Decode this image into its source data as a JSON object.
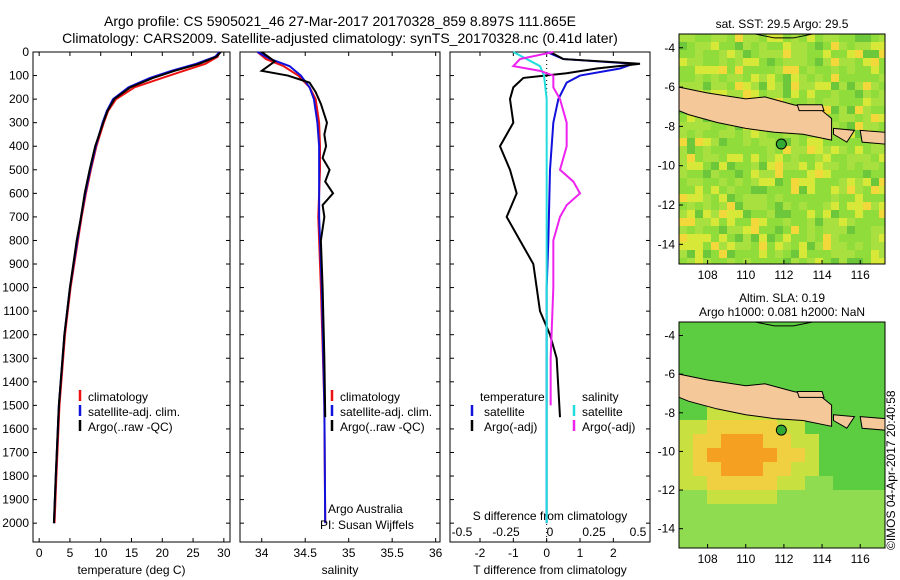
{
  "title_line1": "Argo profile: CS 5905021_46 27-Mar-2017 20170328_859 8.897S 111.865E",
  "title_line2": "Climatology: CARS2009. Satellite-adjusted climatology: synTS_20170328.nc (0.41d later)",
  "colors": {
    "climatology": "#ee1111",
    "satellite": "#1111dd",
    "argo": "#000000",
    "salinity_sat": "#22dddd",
    "salinity_argo": "#ee22ee",
    "land": "#f5c89a"
  },
  "depth_axis": {
    "ticks": [
      0,
      100,
      200,
      300,
      400,
      500,
      600,
      700,
      800,
      900,
      1000,
      1100,
      1200,
      1300,
      1400,
      1500,
      1600,
      1700,
      1800,
      1900,
      2000
    ],
    "range": [
      0,
      2080
    ]
  },
  "chart_data": [
    {
      "type": "line",
      "name": "temperature",
      "xlabel": "temperature (deg C)",
      "xlim": [
        -1,
        31
      ],
      "xticks": [
        0,
        5,
        10,
        15,
        20,
        25,
        30
      ],
      "legend": [
        "climatology",
        "satellite-adj. clim.",
        "Argo(..raw -QC)"
      ],
      "series": [
        {
          "name": "climatology",
          "depth": [
            0,
            20,
            50,
            80,
            110,
            150,
            200,
            250,
            300,
            400,
            500,
            600,
            700,
            800,
            1000,
            1200,
            1500,
            1800,
            2000
          ],
          "values": [
            29.3,
            29.0,
            27.0,
            23.5,
            20.0,
            15.5,
            12.5,
            11.2,
            10.5,
            9.3,
            8.4,
            7.6,
            6.9,
            6.3,
            5.1,
            4.2,
            3.3,
            2.8,
            2.5
          ]
        },
        {
          "name": "satellite-adj. clim.",
          "depth": [
            0,
            20,
            50,
            80,
            110,
            150,
            200,
            250,
            300,
            400,
            500,
            600,
            700,
            800,
            1000,
            1200,
            1500,
            1800,
            2000
          ],
          "values": [
            29.3,
            28.6,
            25.5,
            21.5,
            18.0,
            14.5,
            12.0,
            11.0,
            10.3,
            9.2,
            8.3,
            7.5,
            6.8,
            6.2,
            5.0,
            4.1,
            3.2,
            2.7,
            2.4
          ]
        },
        {
          "name": "Argo(..raw -QC)",
          "depth": [
            0,
            20,
            50,
            80,
            110,
            150,
            200,
            250,
            300,
            400,
            500,
            600,
            700,
            800,
            1000,
            1200,
            1500,
            1800,
            2000
          ],
          "values": [
            29.5,
            28.8,
            26.0,
            22.0,
            18.5,
            14.8,
            12.2,
            11.1,
            10.4,
            9.1,
            8.2,
            7.4,
            6.8,
            6.1,
            5.0,
            4.1,
            3.2,
            2.7,
            2.4
          ]
        }
      ]
    },
    {
      "type": "line",
      "name": "salinity",
      "xlabel": "salinity",
      "xlim": [
        33.75,
        36.05
      ],
      "xticks": [
        34,
        34.5,
        35,
        35.5,
        36
      ],
      "legend": [
        "climatology",
        "satellite-adj. clim.",
        "Argo(..raw -QC)"
      ],
      "annotations": [
        "Argo Australia",
        "PI: Susan Wijffels"
      ],
      "series": [
        {
          "name": "climatology",
          "depth": [
            0,
            30,
            60,
            100,
            150,
            200,
            300,
            400,
            500,
            600,
            700,
            800,
            1000,
            1500,
            2000
          ],
          "values": [
            33.95,
            34.05,
            34.25,
            34.42,
            34.55,
            34.62,
            34.66,
            34.67,
            34.67,
            34.66,
            34.65,
            34.66,
            34.68,
            34.72,
            34.73
          ]
        },
        {
          "name": "satellite-adj. clim.",
          "depth": [
            0,
            30,
            60,
            100,
            150,
            200,
            300,
            400,
            500,
            600,
            700,
            800,
            1000,
            1500,
            2000
          ],
          "values": [
            33.95,
            34.1,
            34.32,
            34.45,
            34.55,
            34.6,
            34.64,
            34.66,
            34.66,
            34.66,
            34.66,
            34.67,
            34.69,
            34.72,
            34.73
          ]
        },
        {
          "name": "Argo(..raw -QC)",
          "depth": [
            0,
            40,
            80,
            100,
            130,
            170,
            220,
            300,
            350,
            400,
            450,
            500,
            550,
            600,
            650,
            700,
            800,
            1000,
            1300,
            1550
          ],
          "values": [
            34.0,
            34.15,
            34.0,
            34.3,
            34.55,
            34.62,
            34.68,
            34.75,
            34.72,
            34.74,
            34.7,
            34.78,
            34.73,
            34.82,
            34.7,
            34.72,
            34.68,
            34.7,
            34.72,
            34.73
          ]
        }
      ]
    },
    {
      "type": "line",
      "name": "difference",
      "xlabel": "T difference from climatology",
      "xlabel_top": "S difference from climatology",
      "xlim": [
        -2.9,
        3.1
      ],
      "xticks": [
        -2,
        -1,
        0,
        1,
        2
      ],
      "xticks_salinity": [
        "-0.5",
        "-0.25",
        "0",
        "0.25",
        "0.5"
      ],
      "legend_temperature": [
        "temperature",
        "satellite",
        "Argo(-adj)"
      ],
      "legend_salinity": [
        "salinity",
        "satellite",
        "Argo(-adj)"
      ],
      "series": [
        {
          "name": "temperature satellite",
          "depth": [
            0,
            30,
            50,
            70,
            100,
            130,
            200,
            300,
            500,
            800,
            1000,
            1300,
            1600,
            2000
          ],
          "values": [
            0,
            0.5,
            2.6,
            2.2,
            1.0,
            0.6,
            0.35,
            0.2,
            0.1,
            0.05,
            0,
            0,
            0,
            0
          ]
        },
        {
          "name": "temperature Argo(-adj)",
          "depth": [
            0,
            30,
            50,
            70,
            90,
            110,
            150,
            200,
            300,
            400,
            500,
            600,
            700,
            800,
            900,
            1000,
            1100,
            1200,
            1300,
            1550
          ],
          "values": [
            0.1,
            0.5,
            2.8,
            1.5,
            0.6,
            -0.7,
            -1.0,
            -1.1,
            -1.0,
            -1.4,
            -1.1,
            -0.9,
            -1.2,
            -0.8,
            -0.4,
            -0.3,
            -0.2,
            0.1,
            0.3,
            0.4
          ]
        },
        {
          "name": "salinity satellite",
          "depth": [
            0,
            30,
            60,
            100,
            200,
            300,
            400,
            600,
            800,
            1000,
            1300,
            1600,
            2000
          ],
          "values": [
            -0.25,
            -0.15,
            -0.05,
            -0.02,
            0,
            0,
            0,
            0,
            0,
            0,
            0,
            0,
            0
          ]
        },
        {
          "name": "salinity Argo(-adj)",
          "depth": [
            0,
            30,
            60,
            80,
            100,
            150,
            200,
            300,
            400,
            500,
            550,
            600,
            650,
            700,
            800,
            1000,
            1300,
            1500
          ],
          "values": [
            0.05,
            -0.2,
            -0.25,
            -0.05,
            0.05,
            0.05,
            0.1,
            0.15,
            0.15,
            0.1,
            0.2,
            0.25,
            0.15,
            0.1,
            0.05,
            0.05,
            0.03,
            0.03
          ]
        }
      ]
    }
  ],
  "maps": [
    {
      "title_lines": [
        "sat. SST: 29.5 Argo: 29.5"
      ],
      "xlim": [
        106.5,
        117.3
      ],
      "ylim": [
        -15,
        -3.3
      ],
      "xticks": [
        108,
        110,
        112,
        114,
        116
      ],
      "yticks": [
        -4,
        -6,
        -8,
        -10,
        -12,
        -14
      ],
      "marker": {
        "lon": 111.865,
        "lat": -8.897
      },
      "style": "sst"
    },
    {
      "title_lines": [
        "Altim. SLA: 0.19",
        "Argo h1000: 0.081 h2000: NaN"
      ],
      "xlim": [
        106.5,
        117.3
      ],
      "ylim": [
        -15,
        -3.3
      ],
      "xticks": [
        108,
        110,
        112,
        114,
        116
      ],
      "yticks": [
        -4,
        -6,
        -8,
        -10,
        -12,
        -14
      ],
      "marker": {
        "lon": 111.865,
        "lat": -8.897
      },
      "style": "sla"
    }
  ],
  "credit": "©IMOS 04-Apr-2017 20:40:58"
}
